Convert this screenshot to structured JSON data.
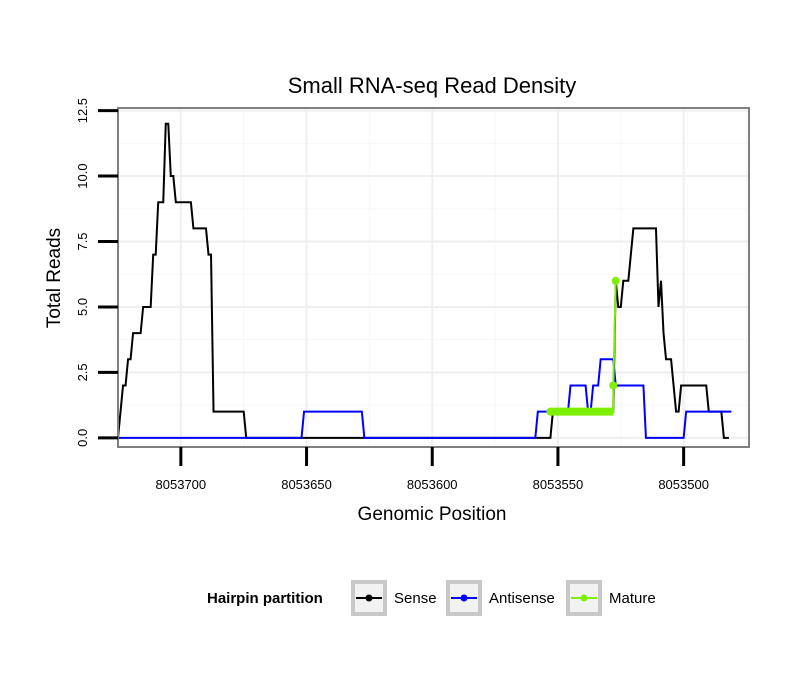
{
  "chart_data": {
    "type": "line",
    "title": "Small RNA-seq Read Density",
    "xlabel": "Genomic Position",
    "ylabel": "Total Reads",
    "xlim": [
      8053725,
      8053474
    ],
    "ylim": [
      -0.35,
      12.6
    ],
    "x_reversed": true,
    "grid": true,
    "x_ticks": [
      {
        "value": 8053700,
        "label": "8053700"
      },
      {
        "value": 8053650,
        "label": "8053650"
      },
      {
        "value": 8053600,
        "label": "8053600"
      },
      {
        "value": 8053550,
        "label": "8053550"
      },
      {
        "value": 8053500,
        "label": "8053500"
      }
    ],
    "y_ticks": [
      {
        "value": 0,
        "label": "0.0"
      },
      {
        "value": 2.5,
        "label": "2.5"
      },
      {
        "value": 5,
        "label": "5.0"
      },
      {
        "value": 7.5,
        "label": "7.5"
      },
      {
        "value": 10,
        "label": "10.0"
      },
      {
        "value": 12.5,
        "label": "12.5"
      }
    ],
    "series": [
      {
        "name": "Sense",
        "color": "#000000",
        "points": [
          [
            8053725,
            0
          ],
          [
            8053723,
            2
          ],
          [
            8053722,
            2
          ],
          [
            8053721,
            3
          ],
          [
            8053720,
            3
          ],
          [
            8053719,
            4
          ],
          [
            8053716,
            4
          ],
          [
            8053715,
            5
          ],
          [
            8053712,
            5
          ],
          [
            8053711,
            7
          ],
          [
            8053710,
            7
          ],
          [
            8053709,
            9
          ],
          [
            8053707,
            9
          ],
          [
            8053706,
            12
          ],
          [
            8053705,
            12
          ],
          [
            8053704,
            10
          ],
          [
            8053703,
            10
          ],
          [
            8053702,
            9
          ],
          [
            8053696,
            9
          ],
          [
            8053695,
            8
          ],
          [
            8053690,
            8
          ],
          [
            8053689,
            7
          ],
          [
            8053688,
            7
          ],
          [
            8053687,
            1
          ],
          [
            8053675,
            1
          ],
          [
            8053674,
            0
          ],
          [
            8053553,
            0
          ],
          [
            8053552,
            1
          ],
          [
            8053528,
            1
          ],
          [
            8053527,
            6
          ],
          [
            8053526,
            5
          ],
          [
            8053525,
            5
          ],
          [
            8053524,
            6
          ],
          [
            8053522,
            6
          ],
          [
            8053521,
            7
          ],
          [
            8053520,
            8
          ],
          [
            8053511,
            8
          ],
          [
            8053510,
            5
          ],
          [
            8053509,
            6
          ],
          [
            8053508,
            4
          ],
          [
            8053507,
            3
          ],
          [
            8053505,
            3
          ],
          [
            8053504,
            2
          ],
          [
            8053503,
            1
          ],
          [
            8053502,
            1
          ],
          [
            8053501,
            2
          ],
          [
            8053491,
            2
          ],
          [
            8053490,
            1
          ],
          [
            8053485,
            1
          ],
          [
            8053484,
            0
          ],
          [
            8053482,
            0
          ]
        ]
      },
      {
        "name": "Antisense",
        "color": "#0000ff",
        "points": [
          [
            8053725,
            0
          ],
          [
            8053652,
            0
          ],
          [
            8053651,
            1
          ],
          [
            8053628,
            1
          ],
          [
            8053627,
            0
          ],
          [
            8053559,
            0
          ],
          [
            8053558,
            1
          ],
          [
            8053553,
            1
          ],
          [
            8053552,
            1
          ],
          [
            8053546,
            1
          ],
          [
            8053545,
            2
          ],
          [
            8053539,
            2
          ],
          [
            8053538,
            1
          ],
          [
            8053537,
            1
          ],
          [
            8053536,
            2
          ],
          [
            8053534,
            2
          ],
          [
            8053533,
            3
          ],
          [
            8053528,
            3
          ],
          [
            8053527,
            2
          ],
          [
            8053516,
            2
          ],
          [
            8053515,
            0
          ],
          [
            8053500,
            0
          ],
          [
            8053499,
            1
          ],
          [
            8053481,
            1
          ]
        ]
      },
      {
        "name": "Mature",
        "color": "#7cf000",
        "points": [
          [
            8053553,
            1
          ],
          [
            8053528,
            1
          ],
          [
            8053528,
            2
          ],
          [
            8053527,
            6
          ]
        ]
      }
    ],
    "legend": {
      "title": "Hairpin partition",
      "placement": "bottom",
      "entries": [
        "Sense",
        "Antisense",
        "Mature"
      ]
    }
  }
}
